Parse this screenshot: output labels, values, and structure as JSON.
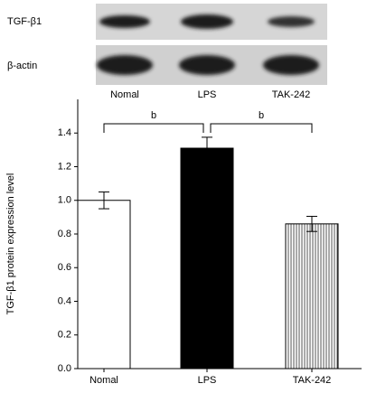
{
  "blot": {
    "rows": [
      "TGF-β1",
      "β-actin"
    ]
  },
  "chart_data": {
    "type": "bar",
    "y_label": "TGF-β1 protein expression level",
    "categories": [
      "Nomal",
      "LPS",
      "TAK-242"
    ],
    "values": [
      1.0,
      1.31,
      0.86
    ],
    "errors": [
      0.05,
      0.065,
      0.045
    ],
    "fills": [
      "white",
      "black",
      "vertical-stripes"
    ],
    "ylim": [
      0,
      1.6
    ],
    "yticks": [
      {
        "value": 0,
        "label": "0.0"
      },
      0.2,
      0.4,
      0.6,
      0.8,
      {
        "value": 1,
        "label": "1.0"
      },
      1.2,
      1.4
    ],
    "annotations": [
      "b",
      "b"
    ]
  }
}
